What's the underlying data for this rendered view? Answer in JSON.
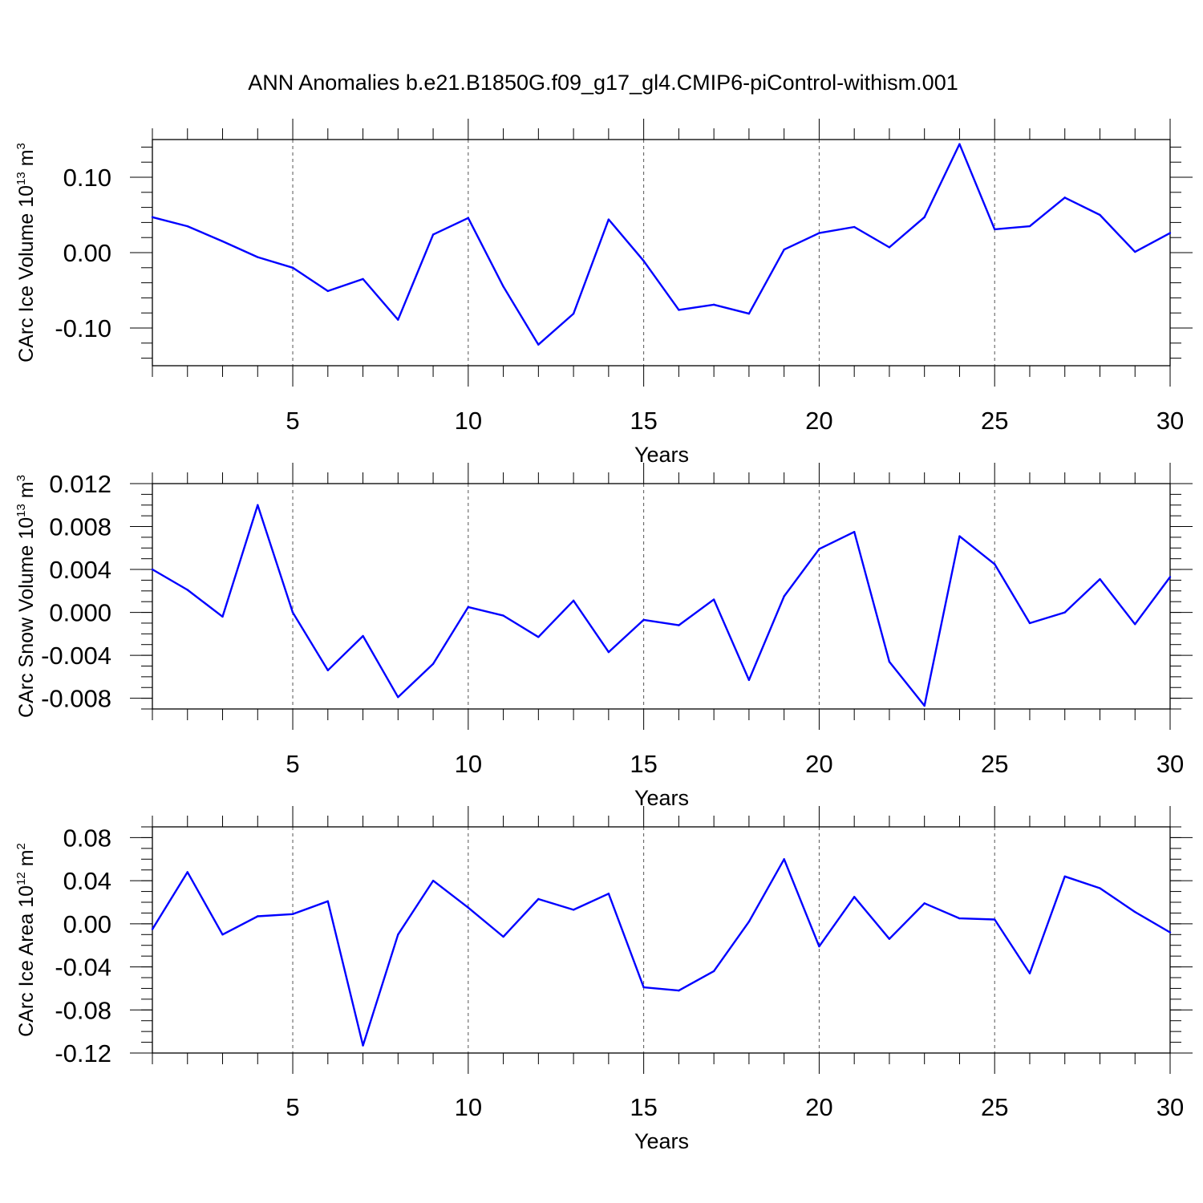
{
  "title": "ANN Anomalies b.e21.B1850G.f09_g17_gl4.CMIP6-piControl-withism.001",
  "colors": {
    "line": "#0000ff",
    "axis": "#000000",
    "grid": "#000000",
    "background": "#ffffff"
  },
  "chart_data": [
    {
      "type": "line",
      "ylabel": {
        "prefix": "CArc Ice Volume 10",
        "exponent": "13",
        "middle": " m",
        "unit_exp": "3"
      },
      "xlabel": "Years",
      "xlim": [
        1,
        30
      ],
      "ylim": [
        -0.15,
        0.15
      ],
      "xticks": [
        5,
        10,
        15,
        20,
        25,
        30
      ],
      "yticks": [
        -0.1,
        0.0,
        0.1
      ],
      "ytick_labels": [
        "-0.10",
        "0.00",
        "0.10"
      ],
      "y_minor_step": 0.02,
      "x_gridlines": [
        5,
        10,
        15,
        20,
        25
      ],
      "series": [
        {
          "x": [
            1,
            2,
            3,
            4,
            5,
            6,
            7,
            8,
            9,
            10,
            11,
            12,
            13,
            14,
            15,
            16,
            17,
            18,
            19,
            20,
            21,
            22,
            23,
            24,
            25,
            26,
            27,
            28,
            29,
            30
          ],
          "values": [
            0.047,
            0.035,
            0.015,
            -0.006,
            -0.02,
            -0.051,
            -0.035,
            -0.089,
            0.024,
            0.046,
            -0.045,
            -0.122,
            -0.081,
            0.044,
            -0.011,
            -0.076,
            -0.069,
            -0.081,
            0.004,
            0.026,
            0.034,
            0.007,
            0.047,
            0.144,
            0.031,
            0.035,
            0.073,
            0.05,
            0.001,
            0.026
          ]
        }
      ]
    },
    {
      "type": "line",
      "ylabel": {
        "prefix": "CArc Snow Volume 10",
        "exponent": "13",
        "middle": " m",
        "unit_exp": "3"
      },
      "xlabel": "Years",
      "xlim": [
        1,
        30
      ],
      "ylim": [
        -0.009,
        0.012
      ],
      "xticks": [
        5,
        10,
        15,
        20,
        25,
        30
      ],
      "yticks": [
        -0.008,
        -0.004,
        0.0,
        0.004,
        0.008,
        0.012
      ],
      "ytick_labels": [
        "-0.008",
        "-0.004",
        "0.000",
        "0.004",
        "0.008",
        "0.012"
      ],
      "y_minor_step": 0.001,
      "x_gridlines": [
        5,
        10,
        15,
        20,
        25
      ],
      "series": [
        {
          "x": [
            1,
            2,
            3,
            4,
            5,
            6,
            7,
            8,
            9,
            10,
            11,
            12,
            13,
            14,
            15,
            16,
            17,
            18,
            19,
            20,
            21,
            22,
            23,
            24,
            25,
            26,
            27,
            28,
            29,
            30
          ],
          "values": [
            0.004,
            0.0021,
            -0.0004,
            0.01,
            0.0,
            -0.0054,
            -0.0022,
            -0.0079,
            -0.0048,
            0.0005,
            -0.0003,
            -0.0023,
            0.0011,
            -0.0037,
            -0.0007,
            -0.0012,
            0.0012,
            -0.0063,
            0.0015,
            0.0059,
            0.0075,
            -0.0046,
            -0.0087,
            0.0071,
            0.0045,
            -0.001,
            0.0,
            0.0031,
            -0.0011,
            0.0033
          ]
        }
      ]
    },
    {
      "type": "line",
      "ylabel": {
        "prefix": "CArc Ice Area 10",
        "exponent": "12",
        "middle": " m",
        "unit_exp": "2"
      },
      "xlabel": "Years",
      "xlim": [
        1,
        30
      ],
      "ylim": [
        -0.12,
        0.09
      ],
      "xticks": [
        5,
        10,
        15,
        20,
        25,
        30
      ],
      "yticks": [
        -0.12,
        -0.08,
        -0.04,
        0.0,
        0.04,
        0.08
      ],
      "ytick_labels": [
        "-0.12",
        "-0.08",
        "-0.04",
        "0.00",
        "0.04",
        "0.08"
      ],
      "y_minor_step": 0.01,
      "x_gridlines": [
        5,
        10,
        15,
        20,
        25
      ],
      "series": [
        {
          "x": [
            1,
            2,
            3,
            4,
            5,
            6,
            7,
            8,
            9,
            10,
            11,
            12,
            13,
            14,
            15,
            16,
            17,
            18,
            19,
            20,
            21,
            22,
            23,
            24,
            25,
            26,
            27,
            28,
            29,
            30
          ],
          "values": [
            -0.005,
            0.048,
            -0.01,
            0.007,
            0.009,
            0.021,
            -0.113,
            -0.01,
            0.04,
            0.015,
            -0.012,
            0.023,
            0.013,
            0.028,
            -0.059,
            -0.062,
            -0.044,
            0.002,
            0.06,
            -0.021,
            0.025,
            -0.014,
            0.019,
            0.005,
            0.004,
            -0.046,
            0.044,
            0.033,
            0.011,
            -0.008
          ]
        }
      ]
    }
  ]
}
